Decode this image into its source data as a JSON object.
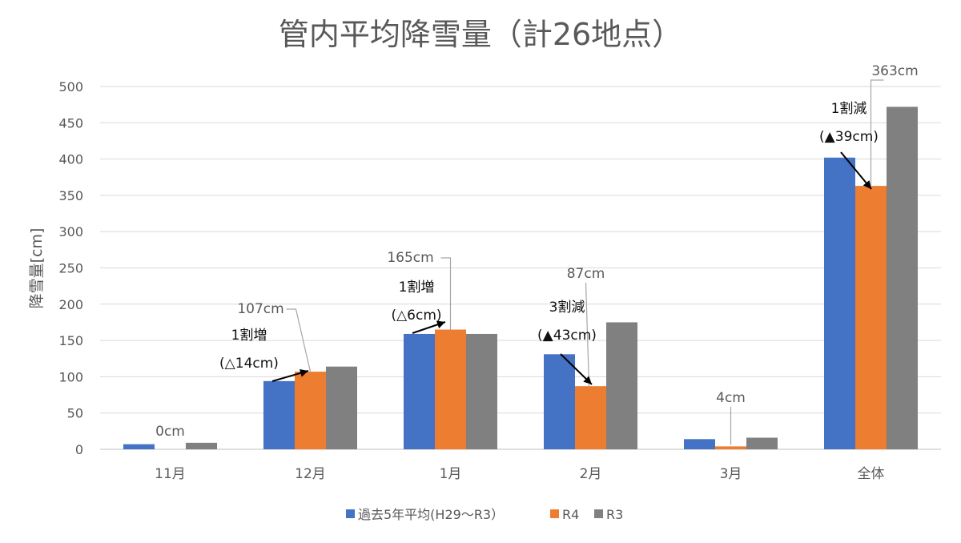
{
  "chart_data": {
    "type": "bar",
    "title": "管内平均降雪量（計26地点）",
    "ylabel": "降雪量[cm]",
    "xlabel": "",
    "ylim": [
      0,
      500
    ],
    "yticks": [
      "0",
      "50",
      "100",
      "150",
      "200",
      "250",
      "300",
      "350",
      "400",
      "450",
      "500"
    ],
    "grid": true,
    "legend_position": "bottom",
    "categories": [
      "11月",
      "12月",
      "1月",
      "2月",
      "3月",
      "全体"
    ],
    "series": [
      {
        "name": "過去5年平均(H29～R3）",
        "color": "#4472c4",
        "values": [
          7,
          94,
          159,
          131,
          14,
          402
        ]
      },
      {
        "name": "R4",
        "color": "#ed7d31",
        "values": [
          0,
          107,
          165,
          87,
          4,
          363
        ]
      },
      {
        "name": "R3",
        "color": "#808080",
        "values": [
          9,
          114,
          159,
          175,
          16,
          472
        ]
      }
    ],
    "data_labels": [
      {
        "text": "0cm",
        "category_index": 0
      },
      {
        "text": "107cm",
        "category_index": 1
      },
      {
        "text": "165cm",
        "category_index": 2
      },
      {
        "text": "87cm",
        "category_index": 3
      },
      {
        "text": "4cm",
        "category_index": 4
      },
      {
        "text": "363cm",
        "category_index": 5
      }
    ],
    "annotations": [
      {
        "lines": [
          "1割増",
          "(△14cm)"
        ],
        "category_index": 1
      },
      {
        "lines": [
          "1割増",
          "(△6cm)"
        ],
        "category_index": 2
      },
      {
        "lines": [
          "3割減",
          "(▲43cm)"
        ],
        "category_index": 3
      },
      {
        "lines": [
          "1割減",
          "(▲39cm)"
        ],
        "category_index": 5
      }
    ]
  }
}
